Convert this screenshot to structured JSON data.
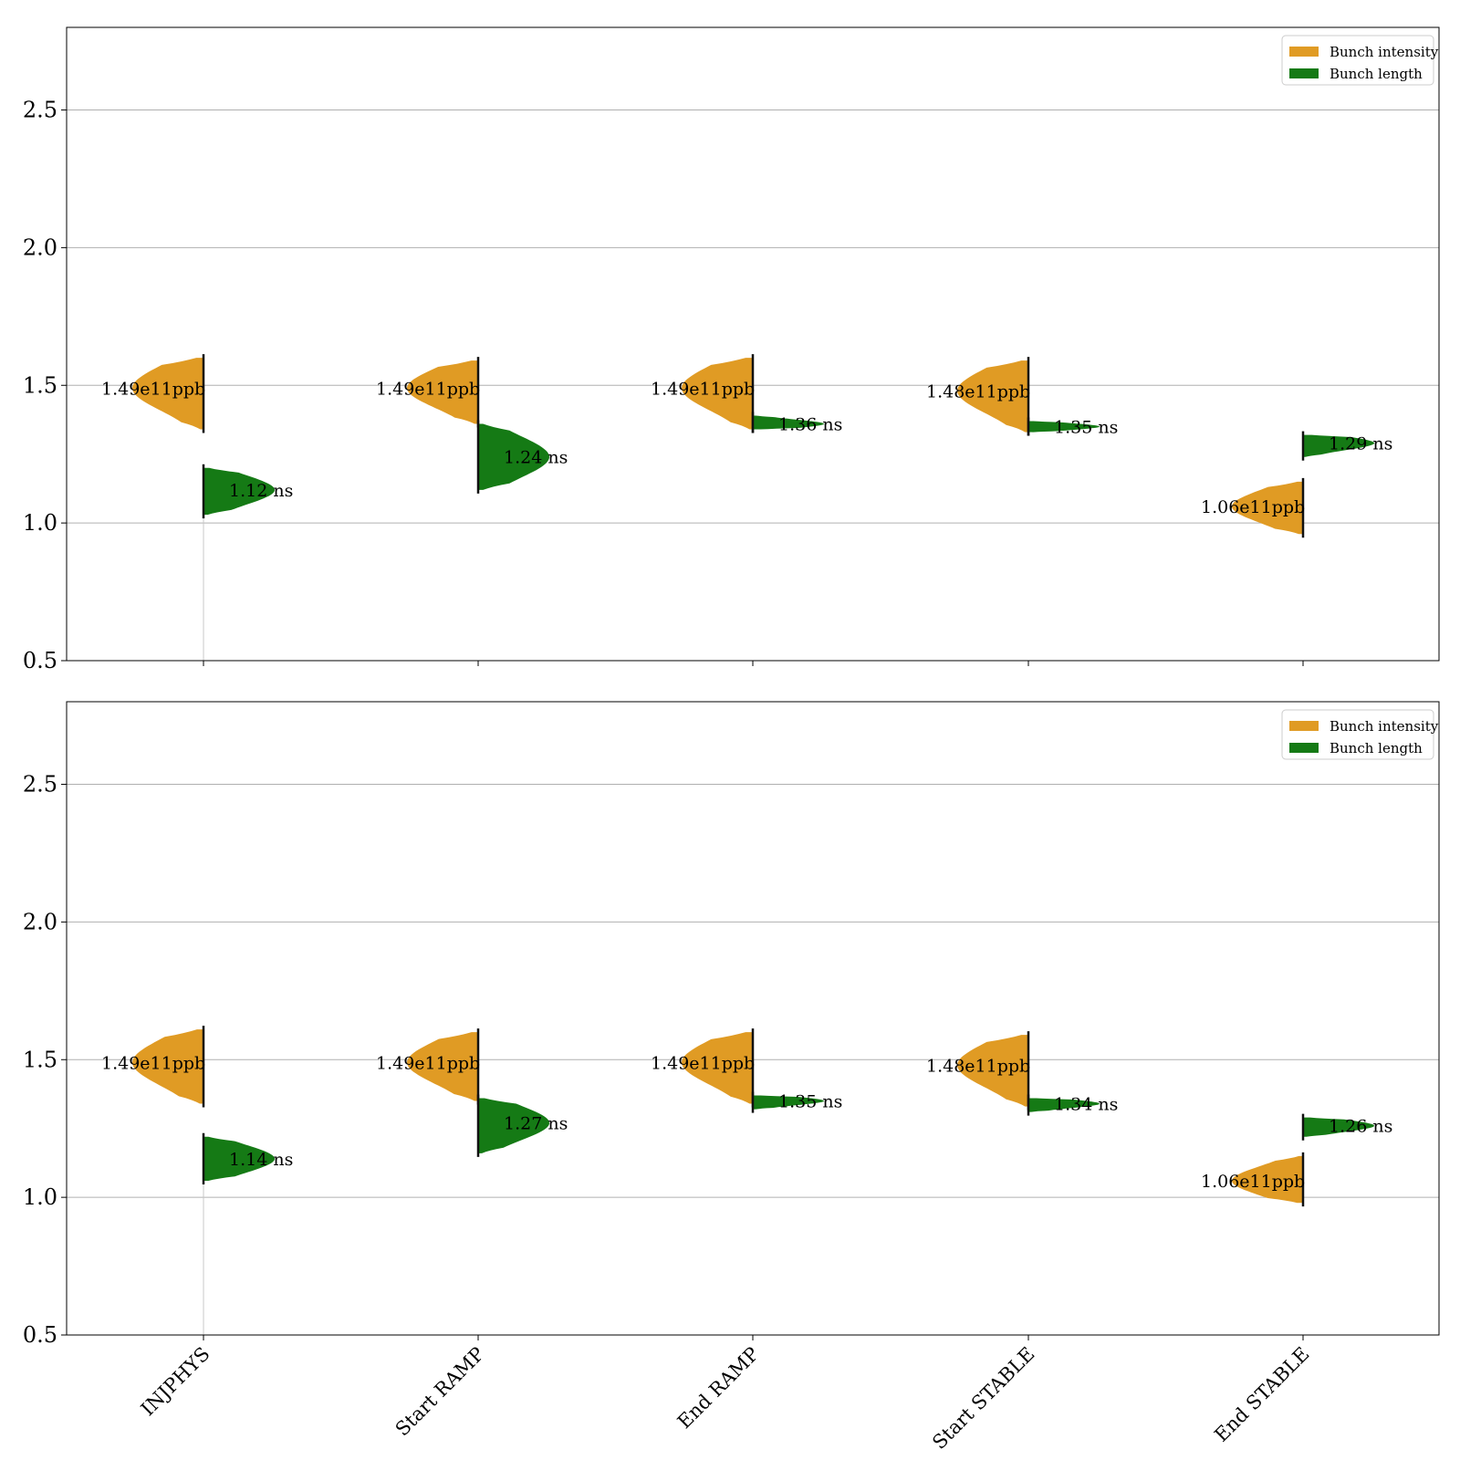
{
  "chart_data": [
    {
      "type": "violin",
      "ylim": [
        0.5,
        2.8
      ],
      "yticks": [
        "0.5",
        "1.0",
        "1.5",
        "2.0",
        "2.5"
      ],
      "categories": [
        "INJPHYS",
        "Start RAMP",
        "End RAMP",
        "Start STABLE",
        "End STABLE"
      ],
      "grid": true,
      "legend_position": "top-right",
      "series": [
        {
          "name": "Bunch intensity",
          "side": "left",
          "color": "#E09B24",
          "values": [
            1.49,
            1.49,
            1.49,
            1.48,
            1.06
          ],
          "range": [
            [
              1.34,
              1.6
            ],
            [
              1.36,
              1.59
            ],
            [
              1.34,
              1.6
            ],
            [
              1.33,
              1.59
            ],
            [
              0.96,
              1.15
            ]
          ],
          "labels": [
            "1.49e11ppb",
            "1.49e11ppb",
            "1.49e11ppb",
            "1.48e11ppb",
            "1.06e11ppb"
          ]
        },
        {
          "name": "Bunch length",
          "side": "right",
          "color": "#157A15",
          "values": [
            1.12,
            1.24,
            1.36,
            1.35,
            1.29
          ],
          "range": [
            [
              1.03,
              1.2
            ],
            [
              1.12,
              1.36
            ],
            [
              1.34,
              1.39
            ],
            [
              1.33,
              1.37
            ],
            [
              1.24,
              1.32
            ]
          ],
          "labels": [
            "1.12 ns",
            "1.24 ns",
            "1.36 ns",
            "1.35 ns",
            "1.29 ns"
          ]
        }
      ]
    },
    {
      "type": "violin",
      "ylim": [
        0.5,
        2.8
      ],
      "yticks": [
        "0.5",
        "1.0",
        "1.5",
        "2.0",
        "2.5"
      ],
      "categories": [
        "INJPHYS",
        "Start RAMP",
        "End RAMP",
        "Start STABLE",
        "End STABLE"
      ],
      "grid": true,
      "legend_position": "top-right",
      "series": [
        {
          "name": "Bunch intensity",
          "side": "left",
          "color": "#E09B24",
          "values": [
            1.49,
            1.49,
            1.49,
            1.48,
            1.06
          ],
          "range": [
            [
              1.34,
              1.61
            ],
            [
              1.35,
              1.6
            ],
            [
              1.34,
              1.6
            ],
            [
              1.33,
              1.59
            ],
            [
              0.98,
              1.15
            ]
          ],
          "labels": [
            "1.49e11ppb",
            "1.49e11ppb",
            "1.49e11ppb",
            "1.48e11ppb",
            "1.06e11ppb"
          ]
        },
        {
          "name": "Bunch length",
          "side": "right",
          "color": "#157A15",
          "values": [
            1.14,
            1.27,
            1.35,
            1.34,
            1.26
          ],
          "range": [
            [
              1.06,
              1.22
            ],
            [
              1.16,
              1.36
            ],
            [
              1.32,
              1.37
            ],
            [
              1.31,
              1.36
            ],
            [
              1.22,
              1.29
            ]
          ],
          "labels": [
            "1.14 ns",
            "1.27 ns",
            "1.35 ns",
            "1.34 ns",
            "1.26 ns"
          ]
        }
      ]
    }
  ]
}
